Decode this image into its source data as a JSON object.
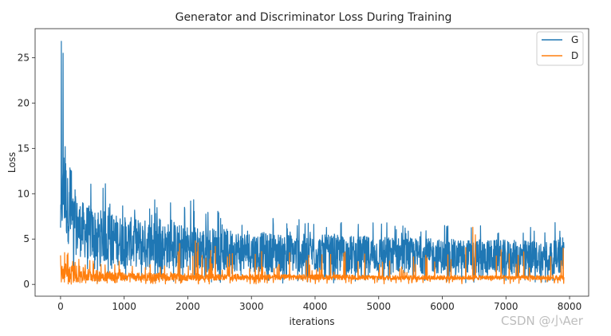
{
  "chart_data": {
    "type": "line",
    "title": "Generator and Discriminator Loss During Training",
    "xlabel": "iterations",
    "ylabel": "Loss",
    "xlim": [
      -400,
      8300
    ],
    "ylim": [
      -1.3,
      28.2
    ],
    "xticks": [
      0,
      1000,
      2000,
      3000,
      4000,
      5000,
      6000,
      7000,
      8000
    ],
    "yticks": [
      0,
      5,
      10,
      15,
      20,
      25
    ],
    "grid": false,
    "legend": "top-right",
    "x_max": 7913,
    "series": [
      {
        "name": "G",
        "color": "#1f77b4",
        "envelope": [
          {
            "x": 0,
            "low": 5.5,
            "high": 8.0,
            "peak": 9.0
          },
          {
            "x": 20,
            "low": 5.8,
            "high": 12.0,
            "peak": 26.8
          },
          {
            "x": 60,
            "low": 5.5,
            "high": 16.0,
            "peak": 25.5
          },
          {
            "x": 120,
            "low": 4.5,
            "high": 11.5,
            "peak": 15.2
          },
          {
            "x": 250,
            "low": 3.2,
            "high": 9.5,
            "peak": 11.0
          },
          {
            "x": 500,
            "low": 2.5,
            "high": 8.5,
            "peak": 12.5
          },
          {
            "x": 1000,
            "low": 2.0,
            "high": 7.5,
            "peak": 10.4
          },
          {
            "x": 1500,
            "low": 1.8,
            "high": 7.0,
            "peak": 9.5
          },
          {
            "x": 2000,
            "low": 1.6,
            "high": 6.5,
            "peak": 9.8
          },
          {
            "x": 2500,
            "low": 1.5,
            "high": 6.2,
            "peak": 8.5
          },
          {
            "x": 3000,
            "low": 1.4,
            "high": 5.8,
            "peak": 7.6
          },
          {
            "x": 4000,
            "low": 1.3,
            "high": 5.5,
            "peak": 7.3
          },
          {
            "x": 5000,
            "low": 1.3,
            "high": 5.3,
            "peak": 7.0
          },
          {
            "x": 6000,
            "low": 1.2,
            "high": 5.0,
            "peak": 6.6
          },
          {
            "x": 7000,
            "low": 1.2,
            "high": 4.9,
            "peak": 7.6
          },
          {
            "x": 7913,
            "low": 1.2,
            "high": 4.8,
            "peak": 7.0
          }
        ]
      },
      {
        "name": "D",
        "color": "#ff7f0e",
        "envelope": [
          {
            "x": 0,
            "low": 0.1,
            "high": 2.5,
            "peak": 4.2
          },
          {
            "x": 200,
            "low": 0.2,
            "high": 2.2,
            "peak": 3.9
          },
          {
            "x": 500,
            "low": 0.3,
            "high": 1.6,
            "peak": 3.0
          },
          {
            "x": 1000,
            "low": 0.4,
            "high": 1.3,
            "peak": 2.6
          },
          {
            "x": 2000,
            "low": 0.4,
            "high": 1.2,
            "peak": 4.8
          },
          {
            "x": 3000,
            "low": 0.5,
            "high": 1.1,
            "peak": 3.8
          },
          {
            "x": 4000,
            "low": 0.5,
            "high": 1.1,
            "peak": 3.4
          },
          {
            "x": 5000,
            "low": 0.5,
            "high": 1.0,
            "peak": 3.7
          },
          {
            "x": 6000,
            "low": 0.5,
            "high": 1.0,
            "peak": 3.3
          },
          {
            "x": 6500,
            "low": 0.5,
            "high": 1.0,
            "peak": 6.3
          },
          {
            "x": 7000,
            "low": 0.5,
            "high": 1.0,
            "peak": 3.6
          },
          {
            "x": 7913,
            "low": 0.5,
            "high": 1.0,
            "peak": 4.0
          }
        ],
        "spikes": [
          {
            "x": 2120,
            "y": 4.8
          },
          {
            "x": 2700,
            "y": 3.4
          },
          {
            "x": 3600,
            "y": 3.5
          },
          {
            "x": 4470,
            "y": 3.6
          },
          {
            "x": 5740,
            "y": 3.2
          },
          {
            "x": 6480,
            "y": 6.3
          },
          {
            "x": 7280,
            "y": 3.6
          },
          {
            "x": 7900,
            "y": 4.0
          }
        ]
      }
    ]
  },
  "watermark": "CSDN @小Aer"
}
